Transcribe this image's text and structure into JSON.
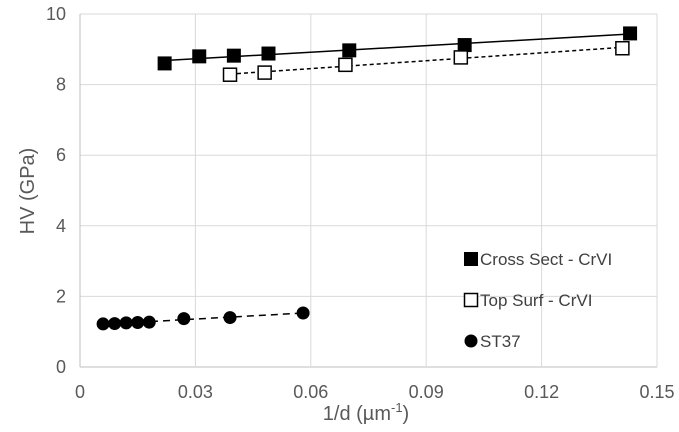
{
  "chart_data": {
    "type": "scatter",
    "xlabel_base": "1/d (µm",
    "xlabel_sup": "-1",
    "xlabel_end": ")",
    "ylabel": "HV (GPa)",
    "xlim": [
      0,
      0.15
    ],
    "ylim": [
      0,
      10
    ],
    "xticks": [
      0,
      0.03,
      0.06,
      0.09,
      0.12,
      0.15
    ],
    "xtick_labels": [
      "0",
      "0.03",
      "0.06",
      "0.09",
      "0.12",
      "0.15"
    ],
    "yticks": [
      0,
      2,
      4,
      6,
      8,
      10
    ],
    "ytick_labels": [
      "0",
      "2",
      "4",
      "6",
      "8",
      "10"
    ],
    "grid": "vertical-and-horizontal",
    "legend_position": "bottom-right",
    "series": [
      {
        "name": "Cross Sect - CrVI",
        "marker": "filled-square",
        "line": "solid",
        "color": "#000000",
        "x": [
          0.022,
          0.031,
          0.04,
          0.049,
          0.07,
          0.1,
          0.143
        ],
        "y": [
          8.6,
          8.8,
          8.82,
          8.88,
          8.97,
          9.12,
          9.45
        ]
      },
      {
        "name": "Top Surf - CrVI",
        "marker": "open-square",
        "line": "short-dash",
        "color": "#000000",
        "x": [
          0.039,
          0.048,
          0.069,
          0.099,
          0.141
        ],
        "y": [
          8.28,
          8.34,
          8.56,
          8.77,
          9.03
        ]
      },
      {
        "name": "ST37",
        "marker": "filled-circle",
        "line": "long-dash",
        "color": "#000000",
        "x": [
          0.006,
          0.009,
          0.012,
          0.015,
          0.018,
          0.027,
          0.039,
          0.058
        ],
        "y": [
          1.22,
          1.23,
          1.25,
          1.26,
          1.27,
          1.37,
          1.4,
          1.53
        ]
      }
    ]
  }
}
